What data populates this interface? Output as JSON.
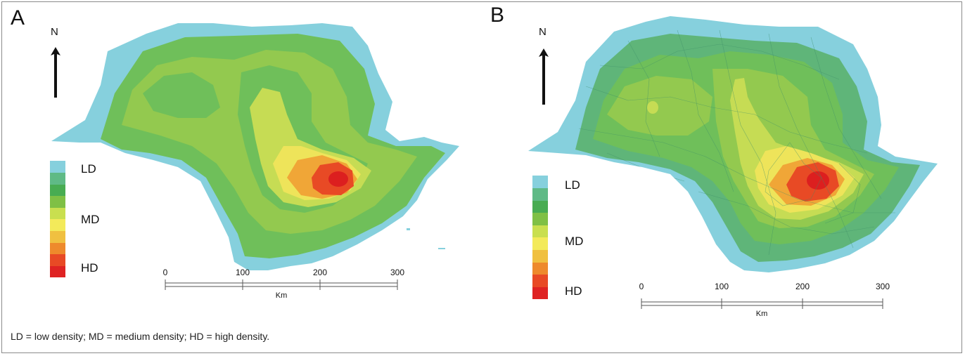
{
  "panels": [
    {
      "letter": "A",
      "north": "N",
      "legend": {
        "labels": {
          "low": "LD",
          "medium": "MD",
          "high": "HD"
        },
        "colors": [
          "#86d0dd",
          "#5fba86",
          "#48ac52",
          "#7fc045",
          "#c9df4f",
          "#f3ea5a",
          "#f0c040",
          "#ee8a2c",
          "#e84a25",
          "#df2323"
        ]
      },
      "scale": {
        "ticks": [
          "0",
          "100",
          "200",
          "300"
        ],
        "unit": "Km"
      }
    },
    {
      "letter": "B",
      "north": "N",
      "legend": {
        "labels": {
          "low": "LD",
          "medium": "MD",
          "high": "HD"
        },
        "colors": [
          "#86d0dd",
          "#5fba86",
          "#48ac52",
          "#7fc045",
          "#c9df4f",
          "#f3ea5a",
          "#f0c040",
          "#ee8a2c",
          "#e84a25",
          "#df2323"
        ]
      },
      "scale": {
        "ticks": [
          "0",
          "100",
          "200",
          "300"
        ],
        "unit": "Km"
      }
    }
  ],
  "density_colors": {
    "outer": "#86d0dd",
    "green_dark": "#5fb579",
    "green": "#6fbf5a",
    "green_light": "#93c94f",
    "yellow_green": "#c6dc54",
    "yellow": "#eee45a",
    "orange": "#f0a637",
    "red": "#e84a25",
    "red_core": "#dc1f1f"
  },
  "caption": "LD = low density; MD = medium density; HD = high density."
}
